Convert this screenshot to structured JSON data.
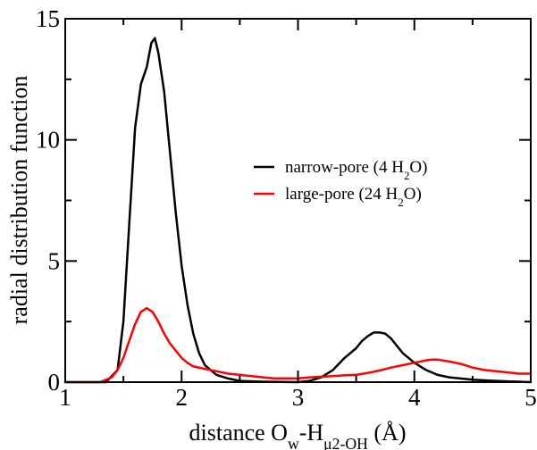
{
  "chart_data": {
    "type": "line",
    "xlabel": {
      "parts": [
        {
          "text": "distance O"
        },
        {
          "text": "w",
          "sub": true
        },
        {
          "text": "-H"
        },
        {
          "text": "μ2-OH",
          "sub": true
        },
        {
          "text": " (Å)"
        }
      ]
    },
    "ylabel": "radial distribution function",
    "xlim": [
      1,
      5
    ],
    "ylim": [
      0,
      15
    ],
    "x_ticks": [
      1,
      2,
      3,
      4,
      5
    ],
    "y_ticks": [
      0,
      5,
      10,
      15
    ],
    "grid": false,
    "legend_position": "right",
    "series": [
      {
        "name_parts": [
          {
            "text": "narrow-pore (4 H"
          },
          {
            "text": "2",
            "sub": true
          },
          {
            "text": "O)"
          }
        ],
        "color": "#000000",
        "points": [
          [
            1.0,
            0
          ],
          [
            1.35,
            0
          ],
          [
            1.45,
            0.5
          ],
          [
            1.5,
            2.5
          ],
          [
            1.55,
            6.5
          ],
          [
            1.6,
            10.5
          ],
          [
            1.65,
            12.3
          ],
          [
            1.7,
            13.0
          ],
          [
            1.74,
            14.0
          ],
          [
            1.77,
            14.2
          ],
          [
            1.8,
            13.6
          ],
          [
            1.85,
            12.0
          ],
          [
            1.9,
            9.5
          ],
          [
            1.95,
            7.0
          ],
          [
            2.0,
            4.8
          ],
          [
            2.05,
            3.2
          ],
          [
            2.1,
            2.0
          ],
          [
            2.15,
            1.2
          ],
          [
            2.2,
            0.7
          ],
          [
            2.3,
            0.3
          ],
          [
            2.4,
            0.15
          ],
          [
            2.5,
            0.05
          ],
          [
            2.7,
            0.02
          ],
          [
            3.0,
            0.0
          ],
          [
            3.1,
            0.05
          ],
          [
            3.2,
            0.2
          ],
          [
            3.3,
            0.5
          ],
          [
            3.4,
            1.0
          ],
          [
            3.5,
            1.4
          ],
          [
            3.55,
            1.7
          ],
          [
            3.6,
            1.9
          ],
          [
            3.65,
            2.05
          ],
          [
            3.7,
            2.05
          ],
          [
            3.75,
            2.0
          ],
          [
            3.8,
            1.8
          ],
          [
            3.85,
            1.5
          ],
          [
            3.9,
            1.2
          ],
          [
            4.0,
            0.8
          ],
          [
            4.1,
            0.5
          ],
          [
            4.2,
            0.3
          ],
          [
            4.3,
            0.2
          ],
          [
            4.5,
            0.1
          ],
          [
            4.7,
            0.05
          ],
          [
            5.0,
            0.0
          ]
        ]
      },
      {
        "name_parts": [
          {
            "text": "large-pore (24 H"
          },
          {
            "text": "2",
            "sub": true
          },
          {
            "text": "O)"
          }
        ],
        "color": "#ff0000",
        "points": [
          [
            1.0,
            0
          ],
          [
            1.3,
            0
          ],
          [
            1.4,
            0.2
          ],
          [
            1.45,
            0.5
          ],
          [
            1.5,
            1.0
          ],
          [
            1.55,
            1.7
          ],
          [
            1.6,
            2.4
          ],
          [
            1.65,
            2.9
          ],
          [
            1.7,
            3.05
          ],
          [
            1.75,
            2.9
          ],
          [
            1.8,
            2.5
          ],
          [
            1.85,
            2.0
          ],
          [
            1.9,
            1.6
          ],
          [
            1.95,
            1.3
          ],
          [
            2.0,
            1.0
          ],
          [
            2.05,
            0.8
          ],
          [
            2.1,
            0.65
          ],
          [
            2.2,
            0.55
          ],
          [
            2.3,
            0.45
          ],
          [
            2.4,
            0.35
          ],
          [
            2.5,
            0.3
          ],
          [
            2.6,
            0.25
          ],
          [
            2.7,
            0.2
          ],
          [
            2.8,
            0.15
          ],
          [
            2.9,
            0.15
          ],
          [
            3.0,
            0.15
          ],
          [
            3.1,
            0.2
          ],
          [
            3.2,
            0.22
          ],
          [
            3.3,
            0.25
          ],
          [
            3.4,
            0.28
          ],
          [
            3.5,
            0.3
          ],
          [
            3.6,
            0.38
          ],
          [
            3.7,
            0.48
          ],
          [
            3.8,
            0.6
          ],
          [
            3.9,
            0.7
          ],
          [
            4.0,
            0.8
          ],
          [
            4.1,
            0.9
          ],
          [
            4.15,
            0.93
          ],
          [
            4.2,
            0.93
          ],
          [
            4.3,
            0.85
          ],
          [
            4.4,
            0.75
          ],
          [
            4.5,
            0.6
          ],
          [
            4.6,
            0.5
          ],
          [
            4.7,
            0.45
          ],
          [
            4.8,
            0.4
          ],
          [
            4.9,
            0.35
          ],
          [
            5.0,
            0.35
          ]
        ]
      }
    ]
  }
}
